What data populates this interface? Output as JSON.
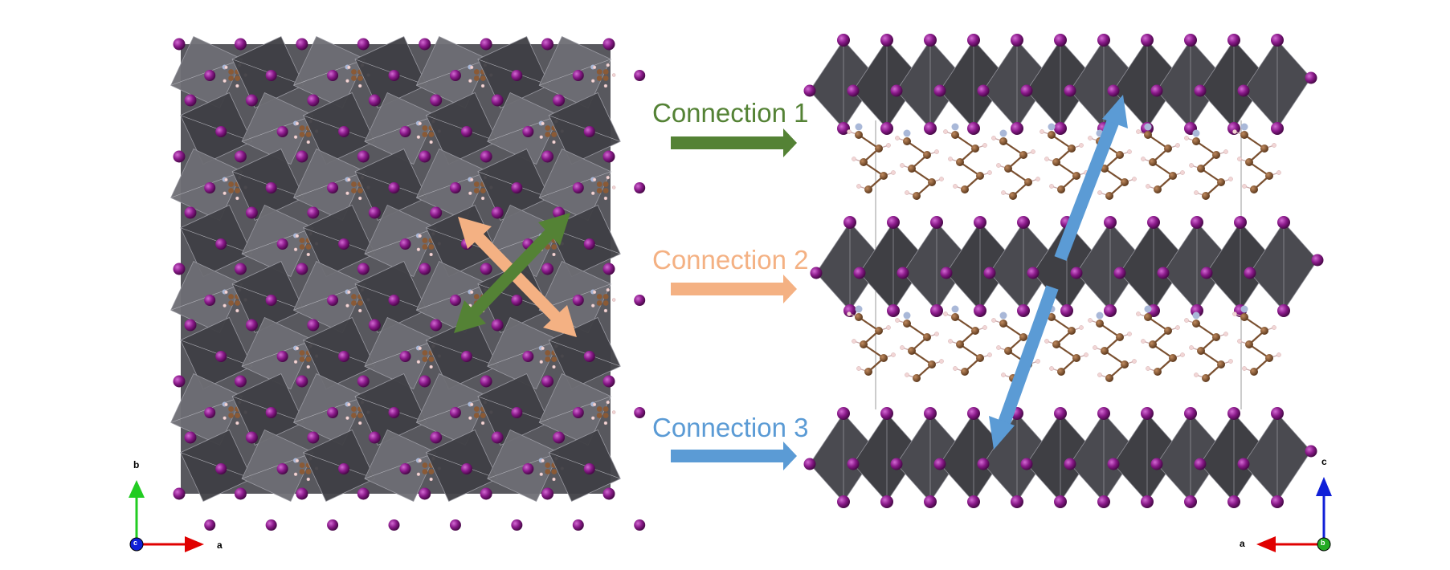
{
  "left_panel": {
    "axes": {
      "vertical": "b",
      "horizontal": "a",
      "origin": "c"
    }
  },
  "right_panel": {
    "axes": {
      "vertical": "c",
      "horizontal": "a",
      "origin": "b"
    }
  },
  "legend": [
    {
      "label": "Connection 1",
      "color": "#548235"
    },
    {
      "label": "Connection 2",
      "color": "#F4B183"
    },
    {
      "label": "Connection 3",
      "color": "#5B9BD5"
    }
  ],
  "colors": {
    "octahedron_dark": "#3f3f44",
    "octahedron_light": "#6e6e74",
    "iodine": "#8a1a8a",
    "carbon": "#8a5a36",
    "nitrogen": "#a9b8d8",
    "hydrogen": "#f2d6d6",
    "axis_x": "#e00000",
    "axis_y_green": "#22cc22",
    "axis_z_blue": "#1020d8"
  }
}
